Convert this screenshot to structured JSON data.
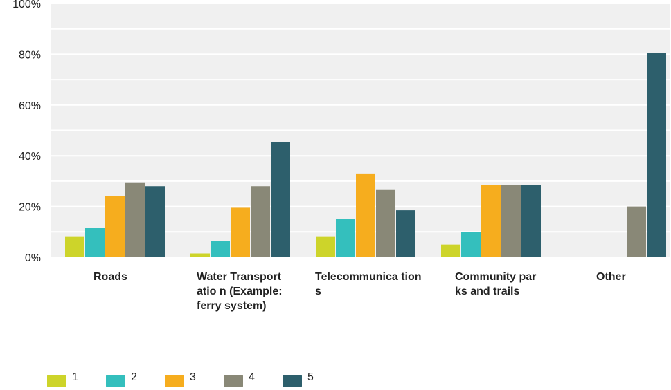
{
  "chart_data": {
    "type": "bar",
    "categories": [
      "Roads",
      "Water Transportation (Example: ferry system)",
      "Telecommunications",
      "Community parks and trails",
      "Other"
    ],
    "category_display": [
      "Roads",
      "Water Transportatio n (Example: ferry system)",
      "Telecommunica tions",
      "Community parks and trails",
      "Other"
    ],
    "series": [
      {
        "name": "1",
        "color": "#cdd42a",
        "values": [
          8,
          1.5,
          8,
          5,
          0
        ]
      },
      {
        "name": "2",
        "color": "#34bfbd",
        "values": [
          11.5,
          6.5,
          15,
          10,
          0
        ]
      },
      {
        "name": "3",
        "color": "#f6ad1e",
        "values": [
          24,
          19.5,
          33,
          28.5,
          0
        ]
      },
      {
        "name": "4",
        "color": "#898877",
        "values": [
          29.5,
          28,
          26.5,
          28.5,
          20
        ]
      },
      {
        "name": "5",
        "color": "#2d5f6c",
        "values": [
          28,
          45.5,
          18.5,
          28.5,
          80.5
        ]
      }
    ],
    "ylim": [
      0,
      100
    ],
    "y_ticks": [
      0,
      20,
      40,
      60,
      80,
      100
    ],
    "y_tick_labels": [
      "0%",
      "20%",
      "40%",
      "60%",
      "80%",
      "100%"
    ],
    "grid": true,
    "legend_position": "bottom-left",
    "plot_background": "#f0f0f0",
    "gridline_color": "#ffffff"
  }
}
